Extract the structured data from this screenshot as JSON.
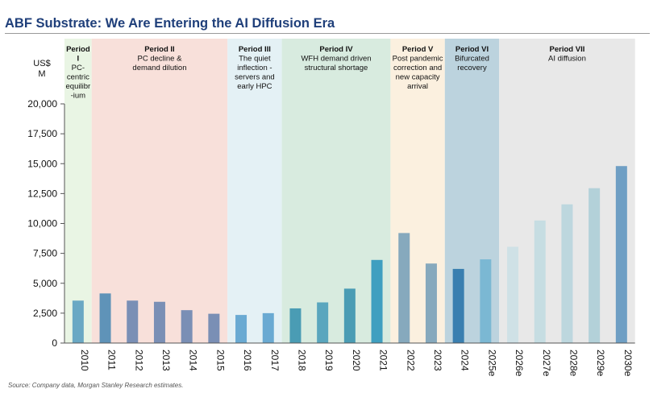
{
  "title": "ABF Substrate: We Are Entering the AI Diffusion Era",
  "source": "Source: Company data, Morgan Stanley Research estimates.",
  "chart_data": {
    "type": "bar",
    "ylabel": [
      "US$",
      "M"
    ],
    "ylim": [
      0,
      20000
    ],
    "yticks": [
      0,
      2500,
      5000,
      7500,
      10000,
      12500,
      15000,
      17500,
      20000
    ],
    "ytick_labels": [
      "0",
      "2,500",
      "5,000",
      "7,500",
      "10,000",
      "12,500",
      "15,000",
      "17,500",
      "20,000"
    ],
    "categories": [
      "2010",
      "2011",
      "2012",
      "2013",
      "2014",
      "2015",
      "2016",
      "2017",
      "2018",
      "2019",
      "2020",
      "2021",
      "2022",
      "2023",
      "2024",
      "2025e",
      "2026e",
      "2027e",
      "2028e",
      "2029e",
      "2030e"
    ],
    "values": [
      3550,
      4150,
      3550,
      3450,
      2750,
      2450,
      2350,
      2500,
      2900,
      3400,
      4550,
      6950,
      9200,
      6650,
      6200,
      7000,
      8050,
      10250,
      11600,
      12950,
      14800
    ],
    "bar_colors": [
      "#6aa8c4",
      "#5f93b8",
      "#7a8fb5",
      "#7a8fb5",
      "#7a8fb5",
      "#7a8fb5",
      "#6aaad2",
      "#6aaad2",
      "#4a9cb4",
      "#5aa6be",
      "#4a9cb4",
      "#3f9fc0",
      "#86a9bd",
      "#86a9bd",
      "#3a7fb0",
      "#7bb8d3",
      "#cfe1e6",
      "#c6dde2",
      "#bdd7de",
      "#b3d1d9",
      "#6f9fc4"
    ],
    "periods": [
      {
        "title": "Period I",
        "title_lines": [
          "Period",
          "I"
        ],
        "desc_lines": [
          "PC-",
          "centric",
          "equilibr",
          "-ium"
        ],
        "start": 0,
        "end": 1,
        "color": "#e9f5e4"
      },
      {
        "title": "Period II",
        "title_lines": [
          "Period II"
        ],
        "desc_lines": [
          "PC decline &",
          "demand dilution"
        ],
        "start": 1,
        "end": 6,
        "color": "#f8e0da"
      },
      {
        "title": "Period III",
        "title_lines": [
          "Period III"
        ],
        "desc_lines": [
          "The quiet",
          "inflection -",
          "servers and",
          "early HPC"
        ],
        "start": 6,
        "end": 8,
        "color": "#e4f1f5"
      },
      {
        "title": "Period IV",
        "title_lines": [
          "Period IV"
        ],
        "desc_lines": [
          "WFH demand driven",
          "structural shortage"
        ],
        "start": 8,
        "end": 12,
        "color": "#d8ebdf"
      },
      {
        "title": "Period V",
        "title_lines": [
          "Period V"
        ],
        "desc_lines": [
          "Post pandemic",
          "correction and",
          "new capacity",
          "arrival"
        ],
        "start": 12,
        "end": 14,
        "color": "#fbf0df"
      },
      {
        "title": "Period VI",
        "title_lines": [
          "Period VI"
        ],
        "desc_lines": [
          "Bifurcated",
          "recovery"
        ],
        "start": 14,
        "end": 16,
        "color": "#bcd3de"
      },
      {
        "title": "Period VII",
        "title_lines": [
          "Period VII"
        ],
        "desc_lines": [
          "AI diffusion"
        ],
        "start": 16,
        "end": 21,
        "color": "#e8e8e8"
      }
    ]
  }
}
